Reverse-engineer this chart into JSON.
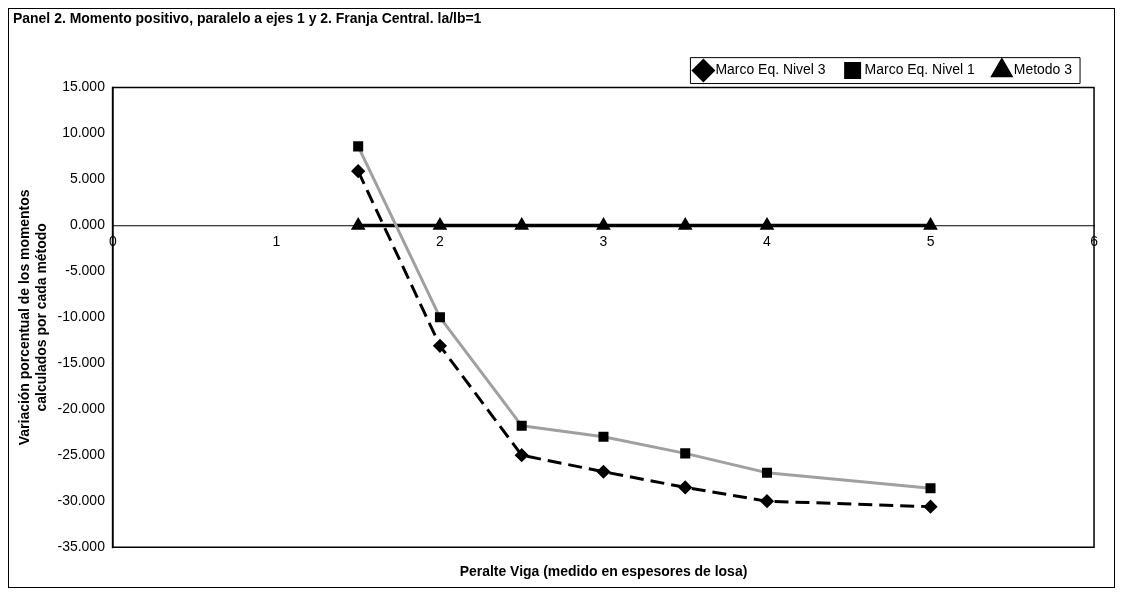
{
  "chart_data": {
    "type": "line",
    "title": "Panel 2. Momento positivo, paralelo a ejes 1 y 2. Franja Central. la/lb=1",
    "xlabel": "Peralte Viga (medido en espesores de losa)",
    "ylabel": "Variación porcentual de los momentos calculados por cada método",
    "x": [
      1.5,
      2,
      2.5,
      3,
      3.5,
      4,
      5
    ],
    "series": [
      {
        "name": "Marco Eq. Nivel 3",
        "color": "#000000",
        "marker": "diamond",
        "line_style": "dashed",
        "values": [
          5.9,
          -13.1,
          -25.0,
          -26.8,
          -28.5,
          -30.0,
          -30.6
        ]
      },
      {
        "name": "Marco Eq. Nivel 1",
        "color": "#a0a0a0",
        "marker": "square",
        "line_style": "solid",
        "values": [
          8.6,
          -10.0,
          -21.8,
          -23.0,
          -24.8,
          -26.9,
          -28.6
        ]
      },
      {
        "name": "Metodo 3",
        "color": "#000000",
        "marker": "triangle",
        "line_style": "solid",
        "values": [
          0,
          0,
          0,
          0,
          0,
          0,
          0
        ]
      }
    ],
    "xlim": [
      0,
      6
    ],
    "xticks": [
      0,
      1,
      2,
      3,
      4,
      5,
      6
    ],
    "ylim": [
      -35,
      15
    ],
    "yticks": [
      {
        "value": 15,
        "label": "15.000"
      },
      {
        "value": 10,
        "label": "10.000"
      },
      {
        "value": 5,
        "label": "5.000"
      },
      {
        "value": 0,
        "label": "0.000"
      },
      {
        "value": -5,
        "label": "-5.000"
      },
      {
        "value": -10,
        "label": "-10.000"
      },
      {
        "value": -15,
        "label": "-15.000"
      },
      {
        "value": -20,
        "label": "-20.000"
      },
      {
        "value": -25,
        "label": "-25.000"
      },
      {
        "value": -30,
        "label": "-30.000"
      },
      {
        "value": -35,
        "label": "-35.000"
      }
    ],
    "grid": false,
    "legend": "top right"
  }
}
